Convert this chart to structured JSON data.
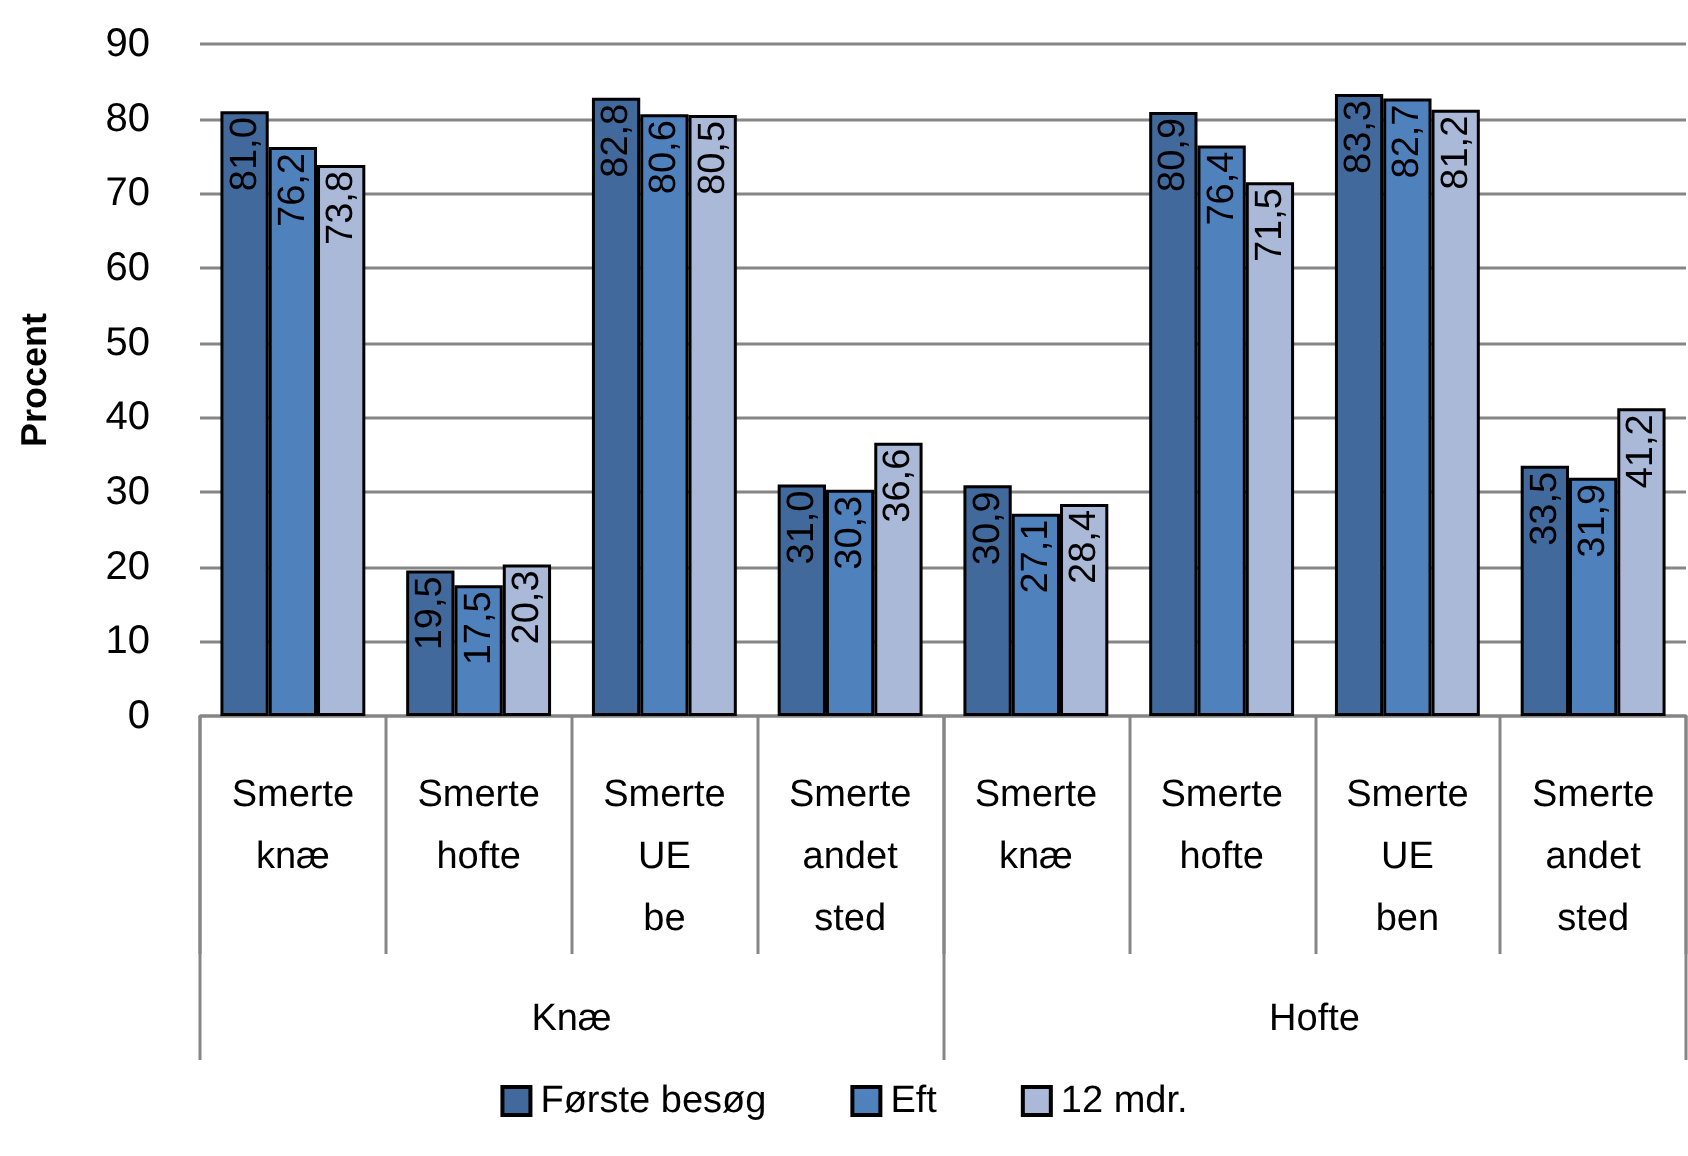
{
  "chart_data": {
    "type": "bar",
    "ylabel": "Procent",
    "categories": [
      "Smerte knæ",
      "Smerte hofte",
      "Smerte UE be",
      "Smerte andet sted",
      "Smerte knæ",
      "Smerte hofte",
      "Smerte UE ben",
      "Smerte andet sted"
    ],
    "annotations": [
      "Knæ",
      "Hofte"
    ],
    "series": [
      {
        "name": "Første besøg",
        "color": "#41699b",
        "values": [
          81.0,
          19.5,
          82.8,
          31.0,
          30.9,
          80.9,
          83.3,
          33.5
        ],
        "value_labels": [
          "81,0",
          "19,5",
          "82,8",
          "31,0",
          "30,9",
          "80,9",
          "83,3",
          "33,5"
        ]
      },
      {
        "name": "Eft",
        "color": "#4f81bd",
        "values": [
          76.2,
          17.5,
          80.6,
          30.3,
          27.1,
          76.4,
          82.7,
          31.9
        ],
        "value_labels": [
          "76,2",
          "17,5",
          "80,6",
          "30,3",
          "27,1",
          "76,4",
          "82,7",
          "31,9"
        ]
      },
      {
        "name": "12 mdr.",
        "color": "#aab9d8",
        "values": [
          73.8,
          20.3,
          80.5,
          36.6,
          28.4,
          71.5,
          81.2,
          41.2
        ],
        "value_labels": [
          "73,8",
          "20,3",
          "80,5",
          "36,6",
          "28,4",
          "71,5",
          "81,2",
          "41,2"
        ]
      }
    ],
    "ylim": [
      0,
      90
    ],
    "yticks": [
      0,
      10,
      20,
      30,
      40,
      50,
      60,
      70,
      80,
      90
    ],
    "grid": "y",
    "legend": "bottom"
  }
}
